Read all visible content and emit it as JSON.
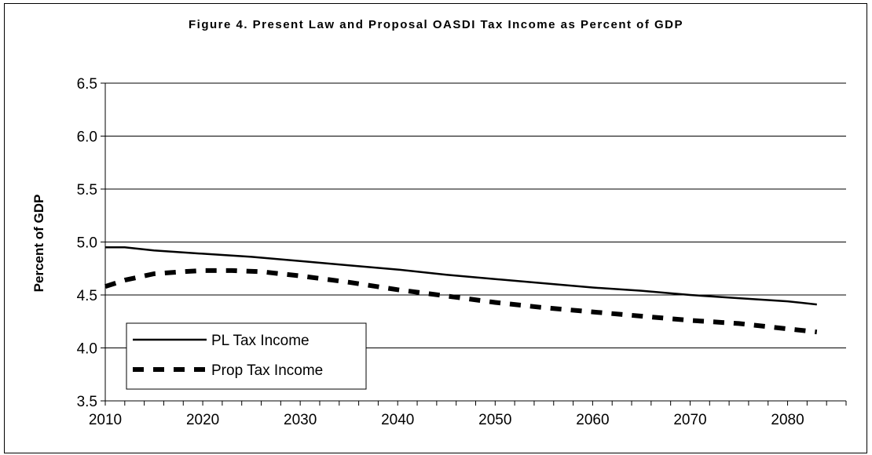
{
  "chart_data": {
    "type": "line",
    "title": "Figure 4. Present Law and Proposal OASDI Tax Income as Percent of GDP",
    "xlabel": "",
    "ylabel": "Percent of GDP",
    "xlim": [
      2010,
      2086
    ],
    "ylim": [
      3.5,
      6.5
    ],
    "x_ticks": [
      2010,
      2020,
      2030,
      2040,
      2050,
      2060,
      2070,
      2080
    ],
    "y_ticks": [
      "3.5",
      "4.0",
      "4.5",
      "5.0",
      "5.5",
      "6.0",
      "6.5"
    ],
    "grid": "horizontal",
    "legend_position": "bottom-left",
    "series": [
      {
        "name": "PL Tax Income",
        "style": "solid",
        "color": "#000000",
        "x": [
          2010,
          2012,
          2015,
          2020,
          2025,
          2030,
          2035,
          2040,
          2045,
          2050,
          2055,
          2060,
          2065,
          2070,
          2075,
          2080,
          2083
        ],
        "values": [
          4.95,
          4.95,
          4.92,
          4.89,
          4.86,
          4.82,
          4.78,
          4.74,
          4.69,
          4.65,
          4.61,
          4.57,
          4.54,
          4.5,
          4.47,
          4.44,
          4.41
        ]
      },
      {
        "name": "Prop Tax Income",
        "style": "dashed",
        "color": "#000000",
        "x": [
          2010,
          2012,
          2015,
          2018,
          2020,
          2023,
          2026,
          2030,
          2035,
          2040,
          2045,
          2050,
          2055,
          2060,
          2065,
          2070,
          2075,
          2080,
          2083
        ],
        "values": [
          4.58,
          4.64,
          4.7,
          4.72,
          4.73,
          4.73,
          4.72,
          4.68,
          4.62,
          4.55,
          4.49,
          4.43,
          4.38,
          4.34,
          4.3,
          4.26,
          4.23,
          4.18,
          4.15
        ]
      }
    ]
  }
}
